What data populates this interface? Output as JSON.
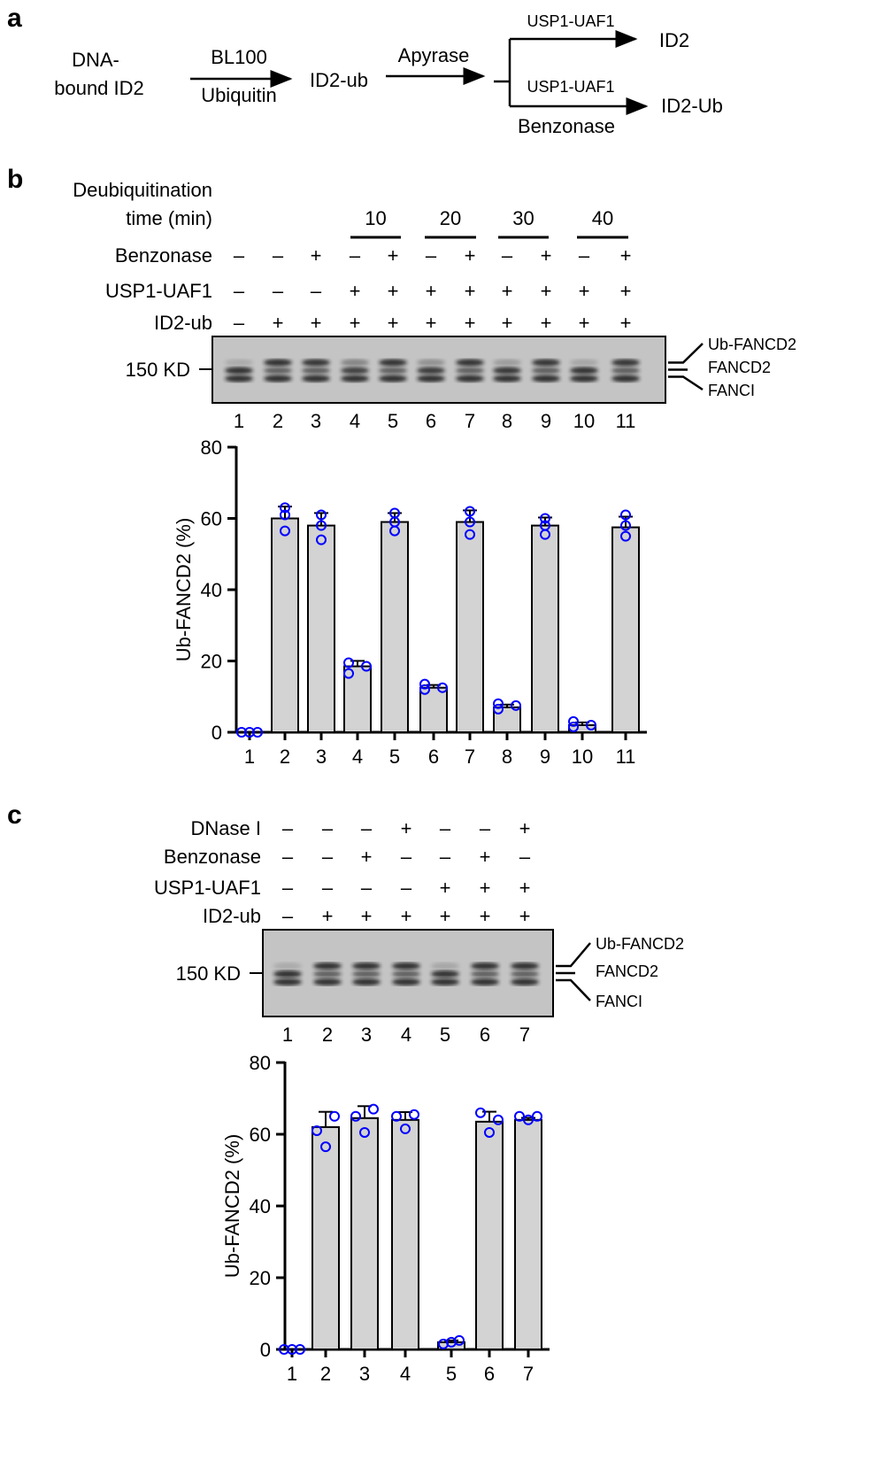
{
  "panel_a": {
    "label": "a",
    "start_line1": "DNA-",
    "start_line2": "bound ID2",
    "step1_above": "BL100",
    "step1_below": "Ubiquitin",
    "intermediate": "ID2-ub",
    "step2_above": "Apyrase",
    "branch1_label": "USP1-UAF1",
    "branch1_product": "ID2",
    "branch2_label": "USP1-UAF1",
    "branch2_below": "Benzonase",
    "branch2_product": "ID2-Ub"
  },
  "panel_b": {
    "label": "b",
    "time_label_line1": "Deubiquitination",
    "time_label_line2": "time (min)",
    "times": [
      "10",
      "20",
      "30",
      "40"
    ],
    "rows": [
      {
        "label": "Benzonase",
        "signs": [
          "–",
          "–",
          "+",
          "–",
          "+",
          "–",
          "+",
          "–",
          "+",
          "–",
          "+"
        ]
      },
      {
        "label": "USP1-UAF1",
        "signs": [
          "–",
          "–",
          "–",
          "+",
          "+",
          "+",
          "+",
          "+",
          "+",
          "+",
          "+"
        ]
      },
      {
        "label": "ID2-ub",
        "signs": [
          "–",
          "+",
          "+",
          "+",
          "+",
          "+",
          "+",
          "+",
          "+",
          "+",
          "+"
        ]
      }
    ],
    "marker": "150 KD",
    "band_labels": [
      "Ub-FANCD2",
      "FANCD2",
      "FANCI"
    ],
    "lanes": [
      "1",
      "2",
      "3",
      "4",
      "5",
      "6",
      "7",
      "8",
      "9",
      "10",
      "11"
    ]
  },
  "panel_c": {
    "label": "c",
    "rows": [
      {
        "label": "DNase I",
        "signs": [
          "–",
          "–",
          "–",
          "+",
          "–",
          "–",
          "+"
        ]
      },
      {
        "label": "Benzonase",
        "signs": [
          "–",
          "–",
          "+",
          "–",
          "–",
          "+",
          "–"
        ]
      },
      {
        "label": "USP1-UAF1",
        "signs": [
          "–",
          "–",
          "–",
          "–",
          "+",
          "+",
          "+"
        ]
      },
      {
        "label": "ID2-ub",
        "signs": [
          "–",
          "+",
          "+",
          "+",
          "+",
          "+",
          "+"
        ]
      }
    ],
    "marker": "150 KD",
    "band_labels": [
      "Ub-FANCD2",
      "FANCD2",
      "FANCI"
    ],
    "lanes": [
      "1",
      "2",
      "3",
      "4",
      "5",
      "6",
      "7"
    ]
  },
  "colors": {
    "bar_fill": "#d3d3d3",
    "point_stroke": "#0000ff",
    "gel_bg": "#c4c4c4",
    "band": "#1a1a1a"
  },
  "chart_data": [
    {
      "type": "bar",
      "panel": "b",
      "categories": [
        "1",
        "2",
        "3",
        "4",
        "5",
        "6",
        "7",
        "8",
        "9",
        "10",
        "11"
      ],
      "values": [
        0,
        60,
        58,
        18.5,
        59,
        12.5,
        59,
        7,
        58,
        2,
        57.5
      ],
      "points": [
        [
          0,
          0,
          0
        ],
        [
          63,
          61,
          56.5
        ],
        [
          61,
          58,
          54
        ],
        [
          19.5,
          16.5,
          18.5
        ],
        [
          61.5,
          59,
          56.5
        ],
        [
          12,
          13.5,
          12.5
        ],
        [
          62,
          59,
          55.5
        ],
        [
          6.5,
          8,
          7.5
        ],
        [
          60,
          58,
          55.5
        ],
        [
          1.5,
          3,
          2
        ],
        [
          61,
          58,
          55
        ]
      ],
      "ylabel": "Ub-FANCD2 (%)",
      "xlabel": "",
      "ylim": [
        0,
        80
      ],
      "yticks": [
        "0",
        "20",
        "40",
        "60",
        "80"
      ],
      "error_bars": "SD",
      "grid": false
    },
    {
      "type": "bar",
      "panel": "c",
      "categories": [
        "1",
        "2",
        "3",
        "4",
        "5",
        "6",
        "7"
      ],
      "values": [
        0,
        62,
        64.5,
        64,
        2,
        63.5,
        64
      ],
      "points": [
        [
          0,
          0,
          0
        ],
        [
          61,
          65,
          56.5
        ],
        [
          65,
          67,
          60.5
        ],
        [
          65,
          65.5,
          61.5
        ],
        [
          1.5,
          2.5,
          2
        ],
        [
          66,
          64,
          60.5
        ],
        [
          65,
          65,
          64
        ]
      ],
      "ylabel": "Ub-FANCD2 (%)",
      "xlabel": "",
      "ylim": [
        0,
        80
      ],
      "yticks": [
        "0",
        "20",
        "40",
        "60",
        "80"
      ],
      "error_bars": "SD",
      "grid": false
    }
  ]
}
